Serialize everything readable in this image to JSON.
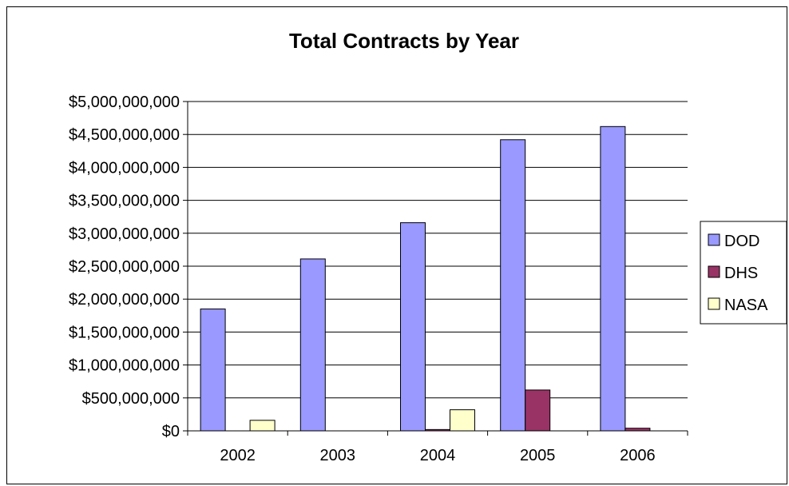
{
  "chart_data": {
    "type": "bar",
    "title": "Total Contracts by Year",
    "xlabel": "",
    "ylabel": "",
    "categories": [
      "2002",
      "2003",
      "2004",
      "2005",
      "2006"
    ],
    "series": [
      {
        "name": "DOD",
        "color": "#9999ff",
        "values": [
          1850000000,
          2610000000,
          3160000000,
          4420000000,
          4620000000
        ]
      },
      {
        "name": "DHS",
        "color": "#993366",
        "values": [
          0,
          0,
          20000000,
          620000000,
          40000000
        ]
      },
      {
        "name": "NASA",
        "color": "#ffffcc",
        "values": [
          160000000,
          0,
          320000000,
          0,
          0
        ]
      }
    ],
    "ylim": [
      0,
      5000000000
    ],
    "yticks": [
      0,
      500000000,
      1000000000,
      1500000000,
      2000000000,
      2500000000,
      3000000000,
      3500000000,
      4000000000,
      4500000000,
      5000000000
    ],
    "ytick_labels": [
      "$0",
      "$500,000,000",
      "$1,000,000,000",
      "$1,500,000,000",
      "$2,000,000,000",
      "$2,500,000,000",
      "$3,000,000,000",
      "$3,500,000,000",
      "$4,000,000,000",
      "$4,500,000,000",
      "$5,000,000,000"
    ],
    "grid": true,
    "legend_position": "right"
  }
}
